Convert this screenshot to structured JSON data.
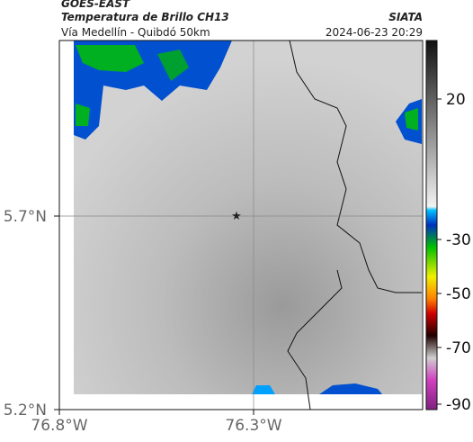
{
  "header": {
    "title": "GOES-EAST",
    "subtitle": "Temperatura de Brillo CH13",
    "route": "Vía Medellín - Quibdó 50km",
    "source": "SIATA",
    "timestamp": "2024-06-23 20:29"
  },
  "map": {
    "xticks": [
      "76.8°W",
      "76.3°W"
    ],
    "yticks": [
      "5.7°N",
      "5.2°N"
    ]
  },
  "colorbar": {
    "ticks": [
      "20",
      "-30",
      "-50",
      "-70",
      "-90"
    ]
  }
}
